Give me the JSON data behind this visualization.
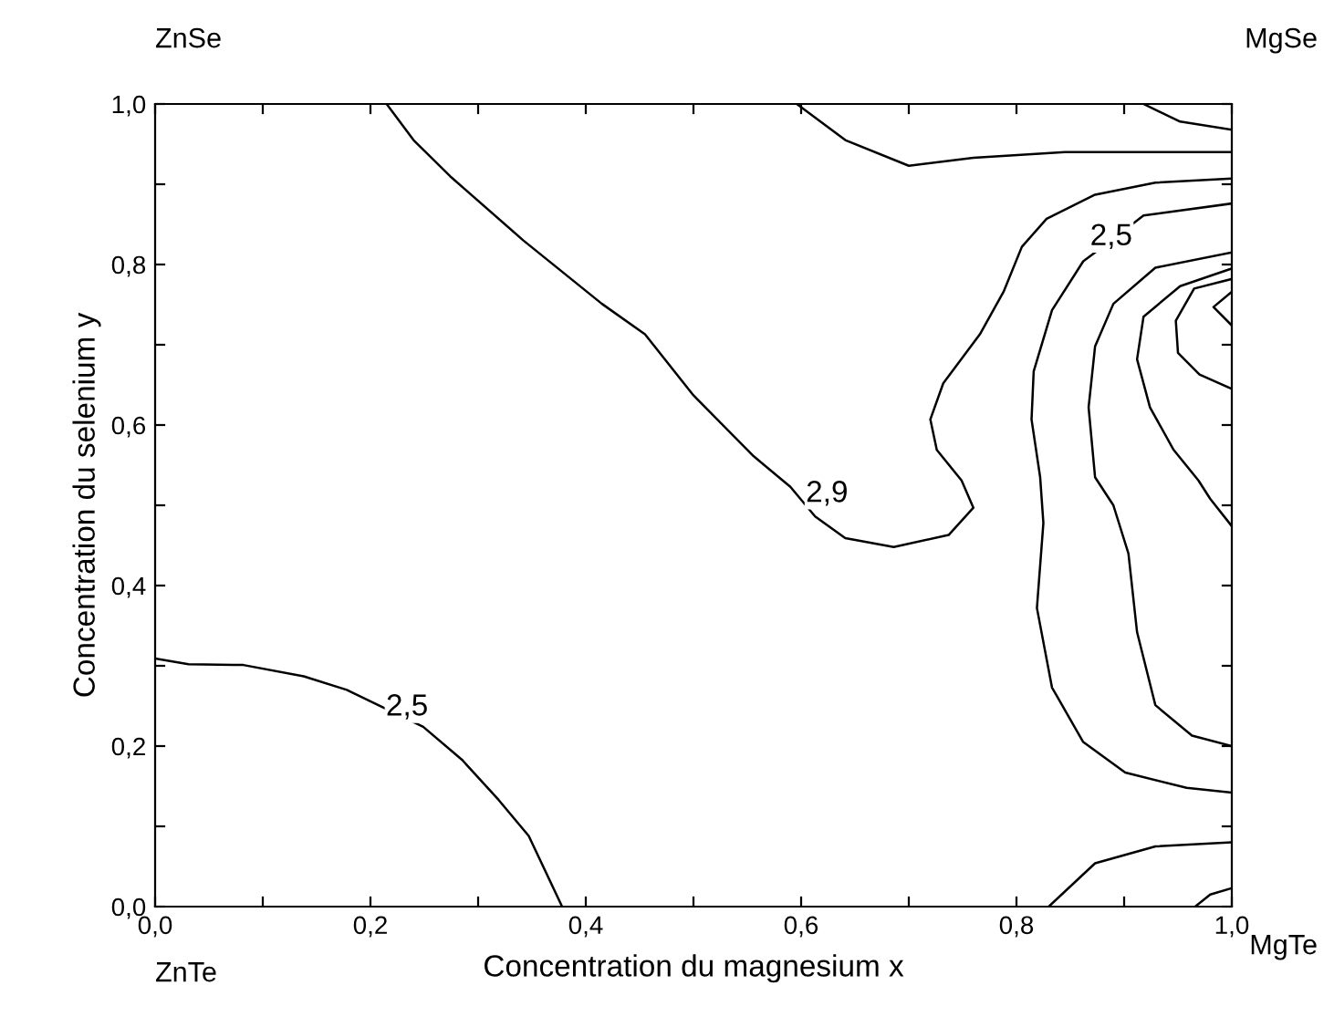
{
  "chart_data": {
    "type": "line",
    "xlabel": "Concentration du magnesium x",
    "ylabel": "Concentration du selenium y",
    "xlim": [
      0,
      1
    ],
    "ylim": [
      0,
      1
    ],
    "xticks": [
      {
        "value": 0,
        "label": "0,0"
      },
      {
        "value": 0.1,
        "label": null
      },
      {
        "value": 0.2,
        "label": "0,2"
      },
      {
        "value": 0.3,
        "label": null
      },
      {
        "value": 0.4,
        "label": "0,4"
      },
      {
        "value": 0.5,
        "label": null
      },
      {
        "value": 0.6,
        "label": "0,6"
      },
      {
        "value": 0.7,
        "label": null
      },
      {
        "value": 0.8,
        "label": "0,8"
      },
      {
        "value": 0.9,
        "label": null
      },
      {
        "value": 1,
        "label": "1,0"
      }
    ],
    "yticks": [
      {
        "value": 0,
        "label": "0,0"
      },
      {
        "value": 0.1,
        "label": null
      },
      {
        "value": 0.2,
        "label": "0,2"
      },
      {
        "value": 0.3,
        "label": null
      },
      {
        "value": 0.4,
        "label": "0,4"
      },
      {
        "value": 0.5,
        "label": null
      },
      {
        "value": 0.6,
        "label": "0,6"
      },
      {
        "value": 0.7,
        "label": null
      },
      {
        "value": 0.8,
        "label": "0,8"
      },
      {
        "value": 0.9,
        "label": null
      },
      {
        "value": 1,
        "label": "1,0"
      }
    ],
    "grid": false,
    "legend": false,
    "marker": "none",
    "line_style": "solid",
    "series": [
      {
        "color": "#000000",
        "x": [
          0,
          0.031,
          0.082,
          0.138,
          0.178,
          0.249,
          0.285,
          0.319,
          0.347,
          0.378
        ],
        "values": [
          0.309,
          0.302,
          0.301,
          0.287,
          0.27,
          0.224,
          0.183,
          0.133,
          0.088,
          0
        ]
      },
      {
        "color": "#000000",
        "x": [
          0.215,
          0.24,
          0.274,
          0.342,
          0.415,
          0.455,
          0.5,
          0.556,
          0.59,
          0.613,
          0.641,
          0.686,
          0.737,
          0.76,
          0.749,
          0.726,
          0.72,
          0.732,
          0.766,
          0.788,
          0.805,
          0.828,
          0.873,
          0.929,
          1.0
        ],
        "values": [
          1.0,
          0.955,
          0.91,
          0.83,
          0.751,
          0.713,
          0.637,
          0.561,
          0.523,
          0.486,
          0.459,
          0.448,
          0.463,
          0.497,
          0.531,
          0.569,
          0.607,
          0.652,
          0.713,
          0.766,
          0.822,
          0.857,
          0.887,
          0.902,
          0.907
        ]
      },
      {
        "color": "#000000",
        "x": [
          0.596,
          0.641,
          0.7,
          0.76,
          0.845,
          0.929,
          1.0
        ],
        "values": [
          1.0,
          0.955,
          0.923,
          0.933,
          0.94,
          0.94,
          0.94
        ]
      },
      {
        "color": "#000000",
        "x": [
          0.918,
          0.952,
          1.0
        ],
        "values": [
          1.0,
          0.978,
          0.968
        ]
      },
      {
        "color": "#000000",
        "x": [
          1.0,
          0.918,
          0.89,
          0.862,
          0.833,
          0.816,
          0.814,
          0.822,
          0.825,
          0.819,
          0.833,
          0.862,
          0.901,
          0.958,
          1.0
        ],
        "values": [
          0.876,
          0.861,
          0.832,
          0.804,
          0.743,
          0.667,
          0.607,
          0.535,
          0.478,
          0.372,
          0.273,
          0.205,
          0.167,
          0.148,
          0.142
        ]
      },
      {
        "color": "#000000",
        "x": [
          1.0,
          0.929,
          0.89,
          0.873,
          0.867,
          0.873,
          0.89,
          0.904,
          0.912,
          0.929,
          0.963,
          1.0
        ],
        "values": [
          0.815,
          0.796,
          0.751,
          0.698,
          0.622,
          0.535,
          0.5,
          0.44,
          0.342,
          0.251,
          0.213,
          0.2
        ]
      },
      {
        "color": "#000000",
        "x": [
          1.0,
          0.952,
          0.918,
          0.912,
          0.924,
          0.946,
          0.969,
          0.98,
          1.0
        ],
        "values": [
          0.795,
          0.773,
          0.735,
          0.682,
          0.622,
          0.569,
          0.531,
          0.508,
          0.474
        ]
      },
      {
        "color": "#000000",
        "x": [
          1.0,
          0.965,
          0.948,
          0.95,
          0.97,
          1.0
        ],
        "values": [
          0.782,
          0.77,
          0.73,
          0.69,
          0.663,
          0.645
        ]
      },
      {
        "color": "#000000",
        "x": [
          1.0,
          0.983,
          1.0
        ],
        "values": [
          0.766,
          0.747,
          0.724
        ]
      },
      {
        "color": "#000000",
        "x": [
          0.83,
          0.873,
          0.929,
          1.0
        ],
        "values": [
          0,
          0.054,
          0.075,
          0.08
        ]
      },
      {
        "color": "#000000",
        "x": [
          0.966,
          0.98,
          1.0
        ],
        "values": [
          0,
          0.015,
          0.023
        ]
      }
    ],
    "annotations": [
      {
        "text": "2,5",
        "x": 0.234,
        "y": 0.248
      },
      {
        "text": "2,9",
        "x": 0.624,
        "y": 0.514
      },
      {
        "text": "2,5",
        "x": 0.888,
        "y": 0.834
      },
      "ZnSe",
      "MgSe",
      "ZnTe",
      "MgTe"
    ]
  }
}
